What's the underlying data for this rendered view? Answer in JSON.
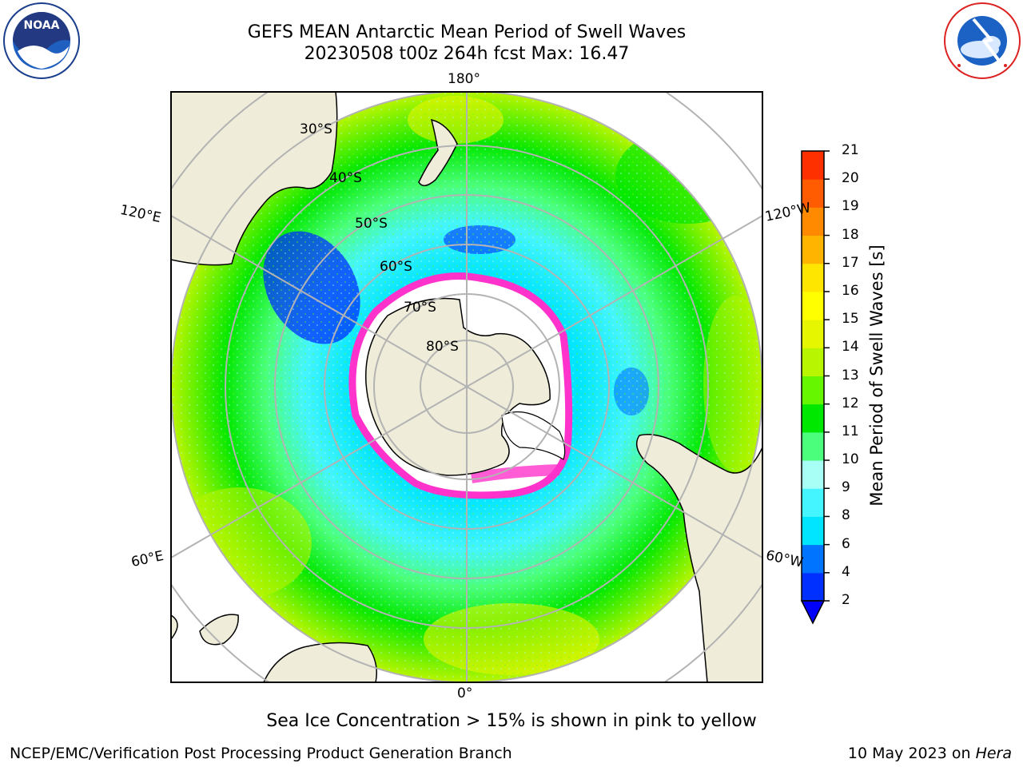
{
  "header": {
    "title_line1": "GEFS MEAN Antarctic Mean Period of Swell Waves",
    "title_line2": "20230508 t00z 264h fcst   Max: 16.47"
  },
  "logos": {
    "left": {
      "icon": "noaa-logo-icon",
      "text": "NOAA",
      "ring_text": "NATIONAL OCEANIC AND ATMOSPHERIC ADMINISTRATION · U.S. DEPARTMENT OF COMMERCE"
    },
    "right": {
      "icon": "nws-logo-icon",
      "ring_text": "NATIONAL WEATHER SERVICE"
    }
  },
  "map": {
    "projection": "south-polar-stereographic",
    "lon_labels": {
      "top": "180°",
      "bottom": "0°",
      "left_upper": "120°E",
      "left_lower": "60°E",
      "right_upper": "120°W",
      "right_lower": "60°W"
    },
    "lat_labels": [
      "30°S",
      "40°S",
      "50°S",
      "60°S",
      "70°S",
      "80°S"
    ],
    "colors": {
      "land": "#efedd9",
      "ocean_low": "#00e5ff",
      "ocean_mid": "#6fff00",
      "ocean_high": "#ffff00",
      "ice_edge": "#ff33cc",
      "grid": "#b3b3b3"
    }
  },
  "colorbar": {
    "label": "Mean Period of Swell Waves [s]",
    "ticks": [
      "2",
      "4",
      "6",
      "8",
      "9",
      "10",
      "11",
      "12",
      "13",
      "14",
      "15",
      "16",
      "17",
      "18",
      "19",
      "20",
      "21"
    ],
    "colors": [
      "#0030ff",
      "#0074ff",
      "#00e5ff",
      "#44f5ff",
      "#a8fff5",
      "#4bff7d",
      "#00e800",
      "#66f600",
      "#b8f500",
      "#e6f500",
      "#ffff00",
      "#ffe600",
      "#ffb400",
      "#ff8a00",
      "#ff5b00",
      "#ff3000",
      "#ff0000"
    ],
    "extend_low": true
  },
  "caption": "Sea Ice Concentration > 15% is shown in pink to yellow",
  "footer": {
    "left": "NCEP/EMC/Verification Post Processing Product Generation Branch",
    "right_date": "10 May 2023 on ",
    "right_host": "Hera"
  }
}
